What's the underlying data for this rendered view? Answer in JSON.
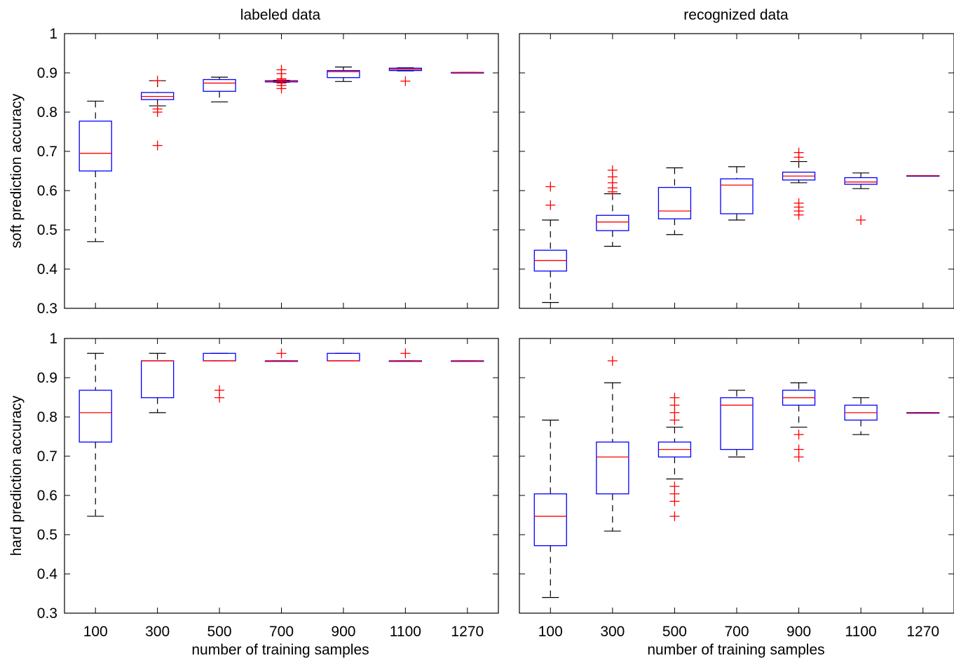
{
  "chart_data": [
    {
      "type": "box",
      "panel": "top-left",
      "title": "labeled data",
      "ylabel": "soft prediction accuracy",
      "xlabel": "",
      "ylim": [
        0.3,
        1.0
      ],
      "yticks": [
        "0.3",
        "0.4",
        "0.5",
        "0.6",
        "0.7",
        "0.8",
        "0.9",
        "1"
      ],
      "xticks_visible": false,
      "categories": [
        "100",
        "300",
        "500",
        "700",
        "900",
        "1100",
        "1270"
      ],
      "boxes": [
        {
          "min": 0.47,
          "q1": 0.65,
          "median": 0.695,
          "q3": 0.777,
          "max": 0.828,
          "outliers": []
        },
        {
          "min": 0.816,
          "q1": 0.832,
          "median": 0.84,
          "q3": 0.85,
          "max": 0.88,
          "outliers": [
            0.88,
            0.808,
            0.8,
            0.715
          ]
        },
        {
          "min": 0.826,
          "q1": 0.853,
          "median": 0.874,
          "q3": 0.883,
          "max": 0.889,
          "outliers": []
        },
        {
          "min": 0.876,
          "q1": 0.877,
          "median": 0.878,
          "q3": 0.88,
          "max": 0.881,
          "outliers": [
            0.908,
            0.898,
            0.885,
            0.882,
            0.874,
            0.868,
            0.86
          ]
        },
        {
          "min": 0.878,
          "q1": 0.888,
          "median": 0.903,
          "q3": 0.906,
          "max": 0.915,
          "outliers": []
        },
        {
          "min": 0.905,
          "q1": 0.906,
          "median": 0.909,
          "q3": 0.912,
          "max": 0.913,
          "outliers": [
            0.879
          ]
        },
        {
          "min": 0.901,
          "q1": 0.901,
          "median": 0.901,
          "q3": 0.901,
          "max": 0.901,
          "outliers": []
        }
      ]
    },
    {
      "type": "box",
      "panel": "top-right",
      "title": "recognized data",
      "ylabel": "",
      "xlabel": "",
      "ylim": [
        0.3,
        1.0
      ],
      "yticks": [],
      "xticks_visible": false,
      "categories": [
        "100",
        "300",
        "500",
        "700",
        "900",
        "1100",
        "1270"
      ],
      "boxes": [
        {
          "min": 0.315,
          "q1": 0.395,
          "median": 0.422,
          "q3": 0.448,
          "max": 0.525,
          "outliers": [
            0.61,
            0.563
          ]
        },
        {
          "min": 0.458,
          "q1": 0.498,
          "median": 0.52,
          "q3": 0.537,
          "max": 0.592,
          "outliers": [
            0.652,
            0.635,
            0.62,
            0.607,
            0.597
          ]
        },
        {
          "min": 0.488,
          "q1": 0.528,
          "median": 0.548,
          "q3": 0.608,
          "max": 0.658,
          "outliers": []
        },
        {
          "min": 0.525,
          "q1": 0.541,
          "median": 0.614,
          "q3": 0.63,
          "max": 0.661,
          "outliers": []
        },
        {
          "min": 0.62,
          "q1": 0.627,
          "median": 0.637,
          "q3": 0.647,
          "max": 0.674,
          "outliers": [
            0.697,
            0.685,
            0.568,
            0.558,
            0.548,
            0.538
          ]
        },
        {
          "min": 0.605,
          "q1": 0.616,
          "median": 0.622,
          "q3": 0.633,
          "max": 0.645,
          "outliers": [
            0.525
          ]
        },
        {
          "min": 0.638,
          "q1": 0.638,
          "median": 0.638,
          "q3": 0.638,
          "max": 0.638,
          "outliers": []
        }
      ]
    },
    {
      "type": "box",
      "panel": "bottom-left",
      "title": "",
      "ylabel": "hard prediction accuracy",
      "xlabel": "number of training samples",
      "ylim": [
        0.3,
        1.0
      ],
      "yticks": [
        "0.3",
        "0.4",
        "0.5",
        "0.6",
        "0.7",
        "0.8",
        "0.9",
        "1"
      ],
      "xticks_visible": true,
      "categories": [
        "100",
        "300",
        "500",
        "700",
        "900",
        "1100",
        "1270"
      ],
      "boxes": [
        {
          "min": 0.547,
          "q1": 0.736,
          "median": 0.811,
          "q3": 0.868,
          "max": 0.962,
          "outliers": []
        },
        {
          "min": 0.811,
          "q1": 0.849,
          "median": 0.943,
          "q3": 0.943,
          "max": 0.962,
          "outliers": []
        },
        {
          "min": 0.943,
          "q1": 0.943,
          "median": 0.943,
          "q3": 0.962,
          "max": 0.962,
          "outliers": [
            0.868,
            0.849
          ]
        },
        {
          "min": 0.943,
          "q1": 0.943,
          "median": 0.943,
          "q3": 0.943,
          "max": 0.943,
          "outliers": [
            0.962
          ]
        },
        {
          "min": 0.943,
          "q1": 0.943,
          "median": 0.943,
          "q3": 0.962,
          "max": 0.962,
          "outliers": []
        },
        {
          "min": 0.943,
          "q1": 0.943,
          "median": 0.943,
          "q3": 0.943,
          "max": 0.943,
          "outliers": [
            0.962
          ]
        },
        {
          "min": 0.943,
          "q1": 0.943,
          "median": 0.943,
          "q3": 0.943,
          "max": 0.943,
          "outliers": []
        }
      ]
    },
    {
      "type": "box",
      "panel": "bottom-right",
      "title": "",
      "ylabel": "",
      "xlabel": "number of training samples",
      "ylim": [
        0.3,
        1.0
      ],
      "yticks": [],
      "xticks_visible": true,
      "categories": [
        "100",
        "300",
        "500",
        "700",
        "900",
        "1100",
        "1270"
      ],
      "boxes": [
        {
          "min": 0.34,
          "q1": 0.472,
          "median": 0.547,
          "q3": 0.604,
          "max": 0.792,
          "outliers": []
        },
        {
          "min": 0.509,
          "q1": 0.604,
          "median": 0.698,
          "q3": 0.736,
          "max": 0.887,
          "outliers": [
            0.943
          ]
        },
        {
          "min": 0.642,
          "q1": 0.698,
          "median": 0.717,
          "q3": 0.736,
          "max": 0.774,
          "outliers": [
            0.849,
            0.83,
            0.811,
            0.792,
            0.623,
            0.604,
            0.585,
            0.547
          ]
        },
        {
          "min": 0.698,
          "q1": 0.717,
          "median": 0.83,
          "q3": 0.849,
          "max": 0.868,
          "outliers": []
        },
        {
          "min": 0.774,
          "q1": 0.83,
          "median": 0.849,
          "q3": 0.868,
          "max": 0.887,
          "outliers": [
            0.755,
            0.717,
            0.698
          ]
        },
        {
          "min": 0.755,
          "q1": 0.792,
          "median": 0.811,
          "q3": 0.83,
          "max": 0.849,
          "outliers": []
        },
        {
          "min": 0.811,
          "q1": 0.811,
          "median": 0.811,
          "q3": 0.811,
          "max": 0.811,
          "outliers": []
        }
      ]
    }
  ],
  "colors": {
    "box": "#0000ff",
    "median": "#ff0000",
    "outlier": "#ff0000",
    "whisker": "#000000",
    "axes": "#000000"
  }
}
